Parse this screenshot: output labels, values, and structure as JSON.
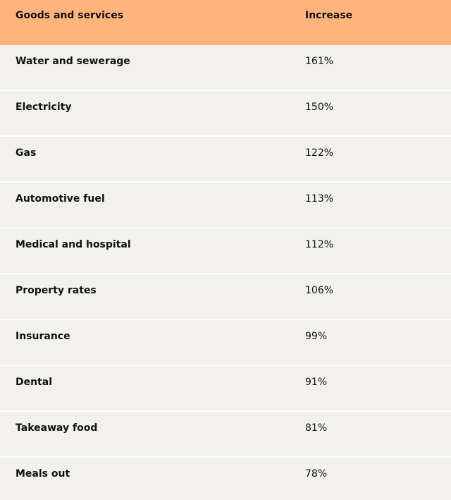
{
  "table": {
    "headers": {
      "goods_services": "Goods and services",
      "increase": "Increase"
    },
    "rows": [
      {
        "item": "Water and sewerage",
        "increase": "161%"
      },
      {
        "item": "Electricity",
        "increase": "150%"
      },
      {
        "item": "Gas",
        "increase": "122%"
      },
      {
        "item": "Automotive fuel",
        "increase": "113%"
      },
      {
        "item": "Medical and hospital",
        "increase": "112%"
      },
      {
        "item": "Property rates",
        "increase": "106%"
      },
      {
        "item": "Insurance",
        "increase": "99%"
      },
      {
        "item": "Dental",
        "increase": "91%"
      },
      {
        "item": "Takeaway food",
        "increase": "81%"
      },
      {
        "item": "Meals out",
        "increase": "78%"
      }
    ]
  },
  "colors": {
    "header_bg": "#ffb47c",
    "row_bg": "#f2f1ed",
    "divider": "#ffffff",
    "text": "#111111"
  }
}
